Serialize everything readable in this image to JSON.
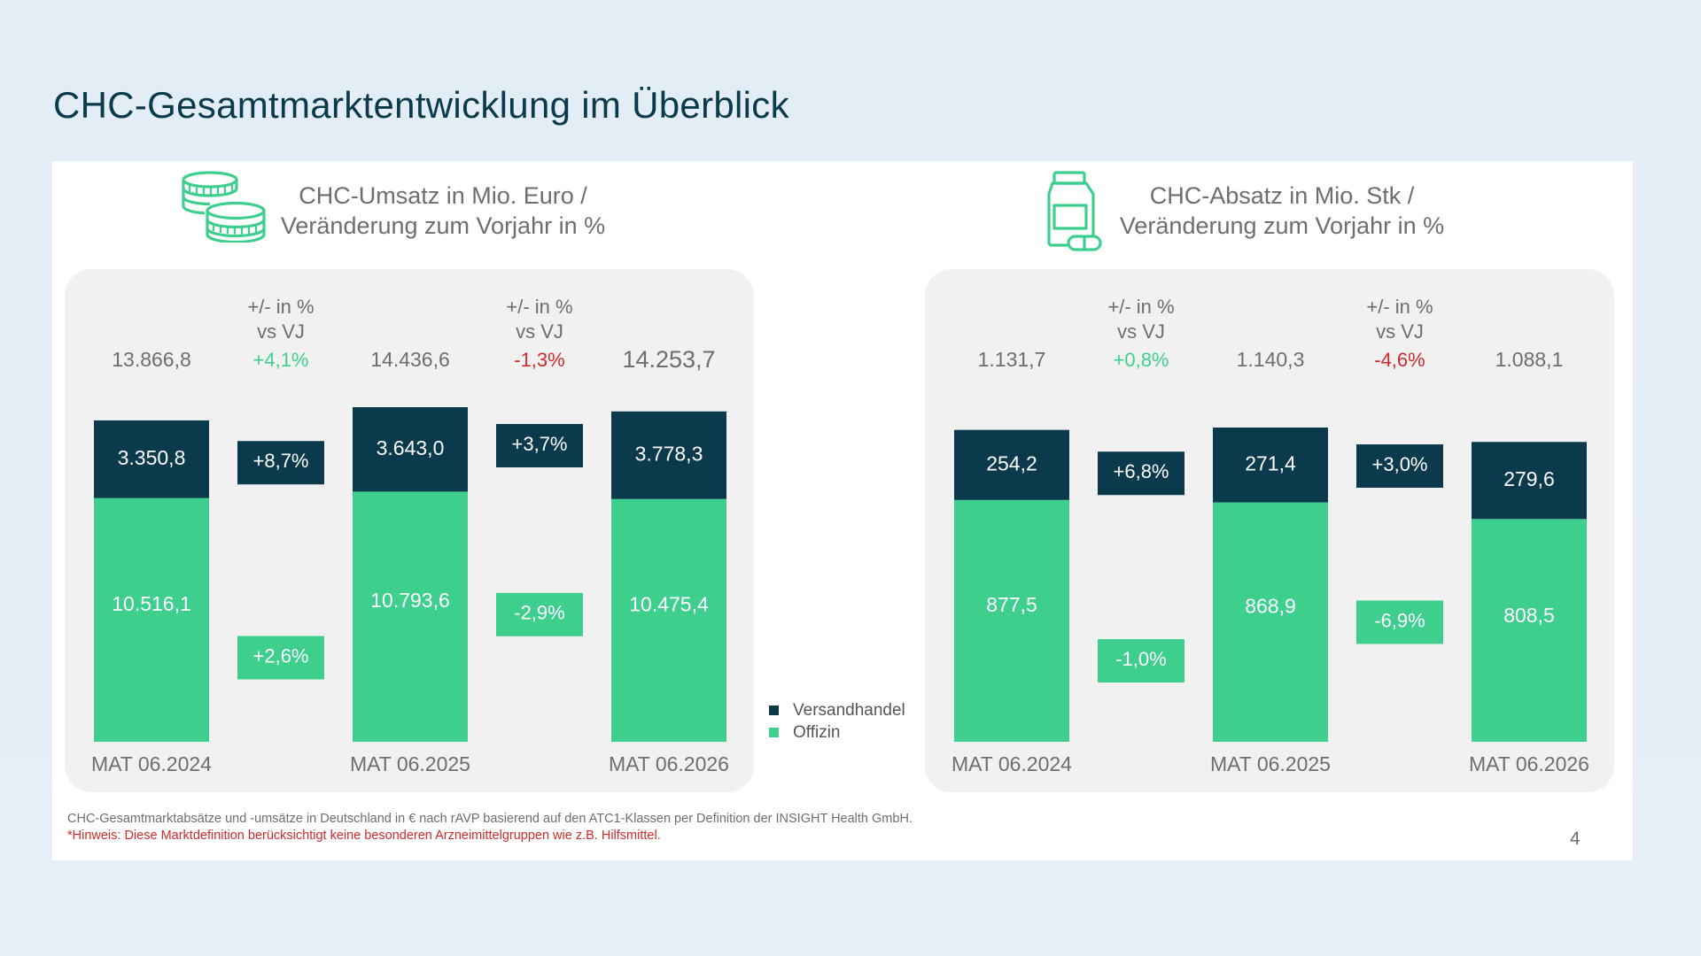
{
  "title": "CHC-Gesamtmarktentwicklung im Überblick",
  "colors": {
    "versand": "#0b3a4c",
    "offizin": "#3ecf8e",
    "pos": "#3ecf8e",
    "neg": "#d42a2a",
    "muted": "#6e6e6e"
  },
  "left_heading": {
    "line1": "CHC-Umsatz in Mio. Euro /",
    "line2": "Veränderung zum Vorjahr in %",
    "icon": "coins-icon"
  },
  "right_heading": {
    "line1": "CHC-Absatz in Mio. Stk /",
    "line2": "Veränderung zum Vorjahr in %",
    "icon": "medicine-bottle-icon"
  },
  "legend": {
    "versand": "Versandhandel",
    "offizin": "Offizin"
  },
  "footnote": {
    "line1": "CHC-Gesamtmarktabsätze und -umsätze in Deutschland in € nach rAVP basierend auf den ATC1-Klassen per Definition der INSIGHT Health GmbH.",
    "line2": "*Hinweis: Diese Marktdefinition berücksichtigt keine besonderen Arzneimittelgruppen wie z.B. Hilfsmittel."
  },
  "page_number": "4",
  "chart_data": [
    {
      "type": "bar",
      "stacked": true,
      "title": "CHC-Umsatz in Mio. Euro / Veränderung zum Vorjahr in %",
      "unit": "Mio. Euro",
      "categories": [
        "MAT 06.2024",
        "MAT 06.2025",
        "MAT 06.2026"
      ],
      "series": [
        {
          "name": "Offizin",
          "values": [
            10516.1,
            10793.6,
            10475.4
          ],
          "labels": [
            "10.516,1",
            "10.793,6",
            "10.475,4"
          ]
        },
        {
          "name": "Versandhandel",
          "values": [
            3350.8,
            3643.0,
            3778.3
          ],
          "labels": [
            "3.350,8",
            "3.643,0",
            "3.778,3"
          ]
        }
      ],
      "totals": [
        "13.866,8",
        "14.436,6",
        "14.253,7"
      ],
      "change_header": [
        "+/- in %",
        "vs VJ"
      ],
      "changes": [
        {
          "total": "+4,1%",
          "total_sign": "pos",
          "versand": "+8,7%",
          "offizin": "+2,6%"
        },
        {
          "total": "-1,3%",
          "total_sign": "neg",
          "versand": "+3,7%",
          "offizin": "-2,9%"
        }
      ]
    },
    {
      "type": "bar",
      "stacked": true,
      "title": "CHC-Absatz in Mio. Stk / Veränderung zum Vorjahr in %",
      "unit": "Mio. Stk",
      "categories": [
        "MAT 06.2024",
        "MAT 06.2025",
        "MAT 06.2026"
      ],
      "series": [
        {
          "name": "Offizin",
          "values": [
            877.5,
            868.9,
            808.5
          ],
          "labels": [
            "877,5",
            "868,9",
            "808,5"
          ]
        },
        {
          "name": "Versandhandel",
          "values": [
            254.2,
            271.4,
            279.6
          ],
          "labels": [
            "254,2",
            "271,4",
            "279,6"
          ]
        }
      ],
      "totals": [
        "1.131,7",
        "1.140,3",
        "1.088,1"
      ],
      "change_header": [
        "+/- in %",
        "vs VJ"
      ],
      "changes": [
        {
          "total": "+0,8%",
          "total_sign": "pos",
          "versand": "+6,8%",
          "offizin": "-1,0%"
        },
        {
          "total": "-4,6%",
          "total_sign": "neg",
          "versand": "+3,0%",
          "offizin": "-6,9%"
        }
      ]
    }
  ]
}
